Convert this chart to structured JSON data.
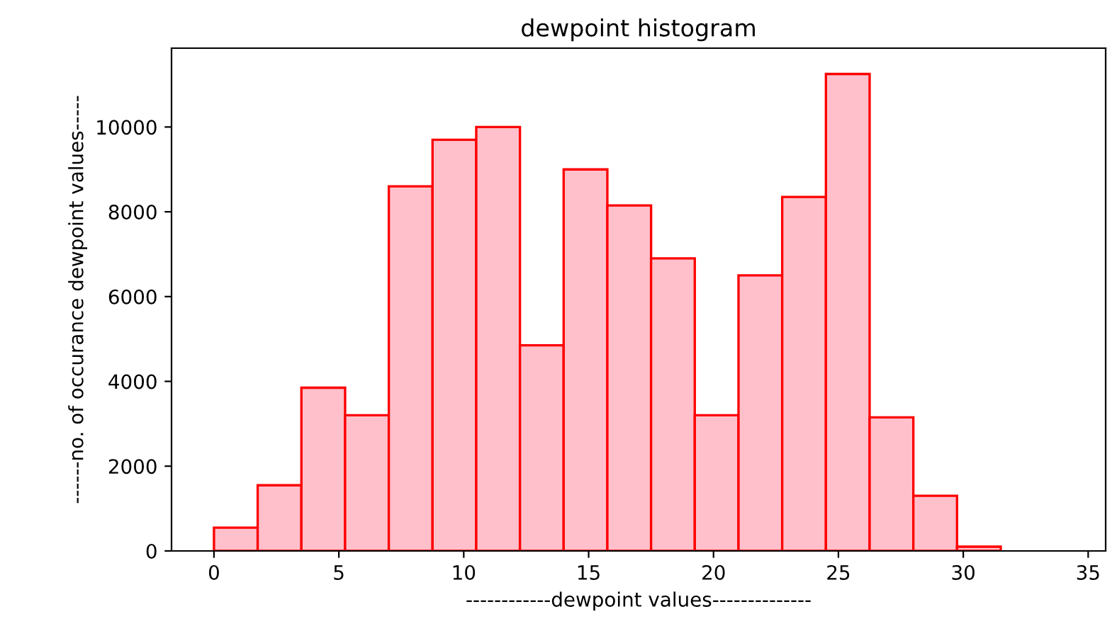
{
  "chart_data": {
    "type": "histogram",
    "title": "dewpoint histogram",
    "xlabel": "------------dewpoint values--------------",
    "ylabel": "------no. of occurance dewpoint values-----",
    "bins": [
      0,
      1.75,
      3.5,
      5.25,
      7,
      8.75,
      10.5,
      12.25,
      14,
      15.75,
      17.5,
      19.25,
      21,
      22.75,
      24.5,
      26.25,
      28,
      29.75,
      31.5
    ],
    "values": [
      550,
      1550,
      3850,
      3200,
      8600,
      9700,
      10000,
      4850,
      9000,
      8150,
      6900,
      3200,
      6500,
      8350,
      11250,
      3150,
      1300,
      100
    ],
    "color": "#ffc0cb",
    "xlim": [
      -1.7,
      35.7
    ],
    "xticks": [
      0,
      5,
      10,
      15,
      20,
      25,
      30,
      35
    ],
    "ylim": [
      0,
      11860
    ],
    "yticks": [
      0,
      2000,
      4000,
      6000,
      8000,
      10000
    ],
    "grid": false
  }
}
